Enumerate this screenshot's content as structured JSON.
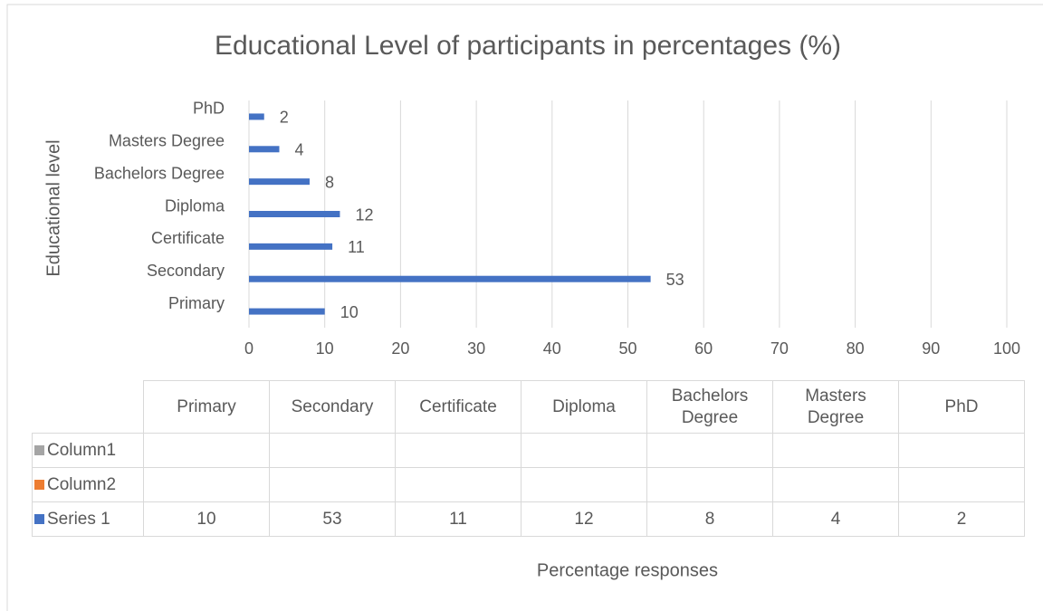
{
  "chart_data": {
    "type": "bar",
    "orientation": "horizontal",
    "title": "Educational Level of participants in percentages (%)",
    "y_axis_label": "Educational level",
    "x_axis_label": "Percentage responses",
    "categories": [
      "Primary",
      "Secondary",
      "Certificate",
      "Diploma",
      "Bachelors Degree",
      "Masters Degree",
      "PhD"
    ],
    "series": [
      {
        "name": "Column1",
        "color": "#a5a5a5",
        "values": [
          null,
          null,
          null,
          null,
          null,
          null,
          null
        ]
      },
      {
        "name": "Column2",
        "color": "#ed7d31",
        "values": [
          null,
          null,
          null,
          null,
          null,
          null,
          null
        ]
      },
      {
        "name": "Series 1",
        "color": "#4472c4",
        "values": [
          10,
          53,
          11,
          12,
          8,
          4,
          2
        ]
      }
    ],
    "xlim": [
      0,
      100
    ],
    "xticks": [
      0,
      10,
      20,
      30,
      40,
      50,
      60,
      70,
      80,
      90,
      100
    ],
    "grid": true,
    "data_table": true
  }
}
